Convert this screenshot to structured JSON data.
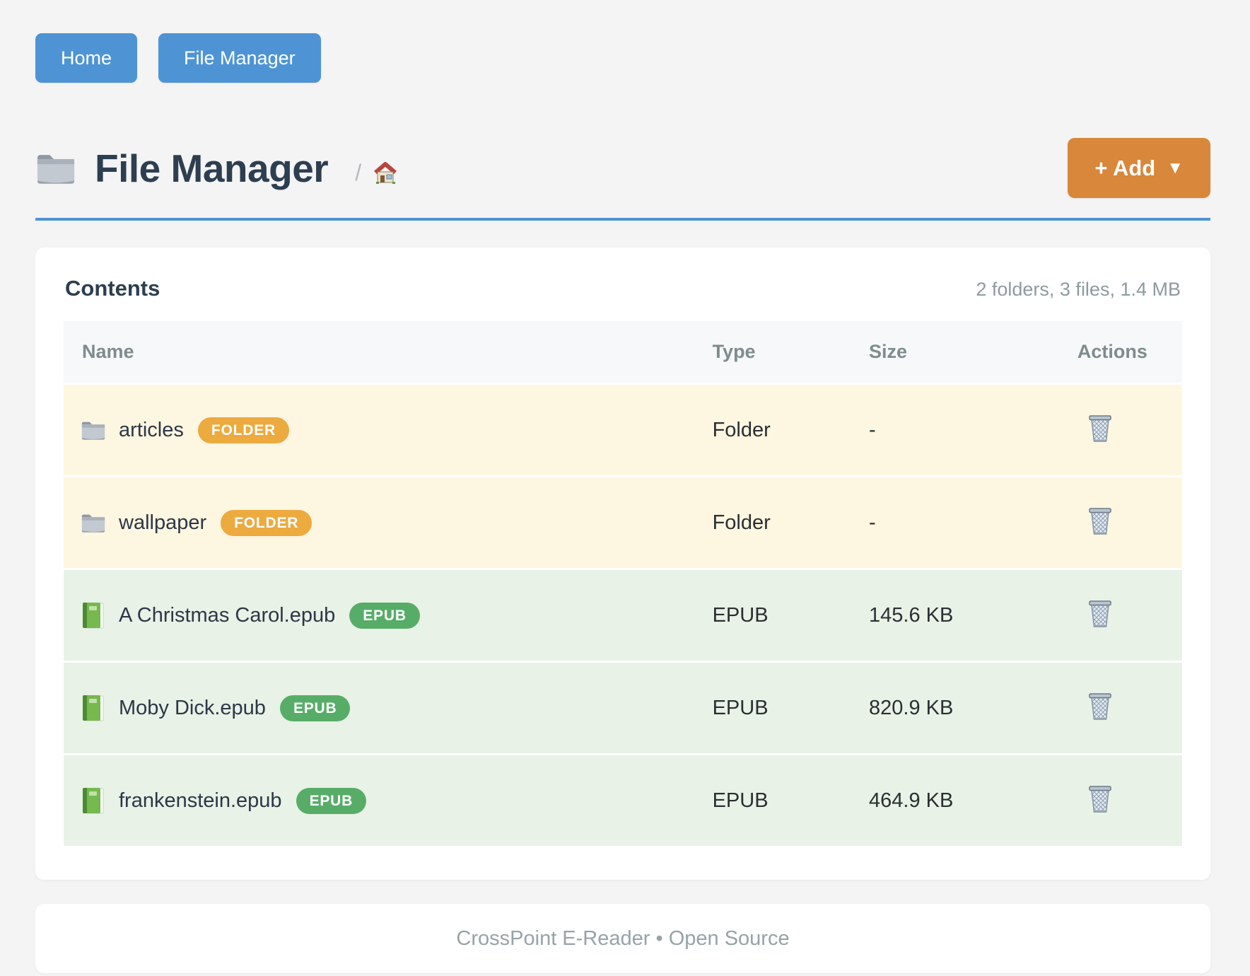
{
  "colors": {
    "page_bg": "#f4f4f5",
    "nav_button_blue": "#4e94d4",
    "title_divider_blue": "#4e94d4",
    "add_button_orange": "#d9873a",
    "badge_folder_orange": "#ecaa3f",
    "badge_epub_green": "#57ad68",
    "row_folder_bg": "#fdf6e1",
    "row_epub_bg": "#e8f2e6",
    "heading_dark": "#2d3e50",
    "muted_gray": "#8e9a9e"
  },
  "nav": {
    "home_label": "Home",
    "file_manager_label": "File Manager"
  },
  "header": {
    "title_icon": "folder-icon",
    "title": "File Manager",
    "breadcrumb_separator": "/",
    "breadcrumb_home_icon": "house-icon",
    "add_button_label": "+ Add",
    "add_button_caret": "▼"
  },
  "contents": {
    "heading": "Contents",
    "summary": "2 folders, 3 files, 1.4 MB",
    "table": {
      "columns": [
        "Name",
        "Type",
        "Size",
        "Actions"
      ],
      "action_icon": "trash-icon",
      "rows": [
        {
          "icon": "folder-icon",
          "name": "articles",
          "badge": "FOLDER",
          "kind": "folder",
          "type": "Folder",
          "size": "-"
        },
        {
          "icon": "folder-icon",
          "name": "wallpaper",
          "badge": "FOLDER",
          "kind": "folder",
          "type": "Folder",
          "size": "-"
        },
        {
          "icon": "book-icon",
          "name": "A Christmas Carol.epub",
          "badge": "EPUB",
          "kind": "epub",
          "type": "EPUB",
          "size": "145.6 KB"
        },
        {
          "icon": "book-icon",
          "name": "Moby Dick.epub",
          "badge": "EPUB",
          "kind": "epub",
          "type": "EPUB",
          "size": "820.9 KB"
        },
        {
          "icon": "book-icon",
          "name": "frankenstein.epub",
          "badge": "EPUB",
          "kind": "epub",
          "type": "EPUB",
          "size": "464.9 KB"
        }
      ]
    }
  },
  "footer": {
    "text": "CrossPoint E-Reader • Open Source"
  }
}
